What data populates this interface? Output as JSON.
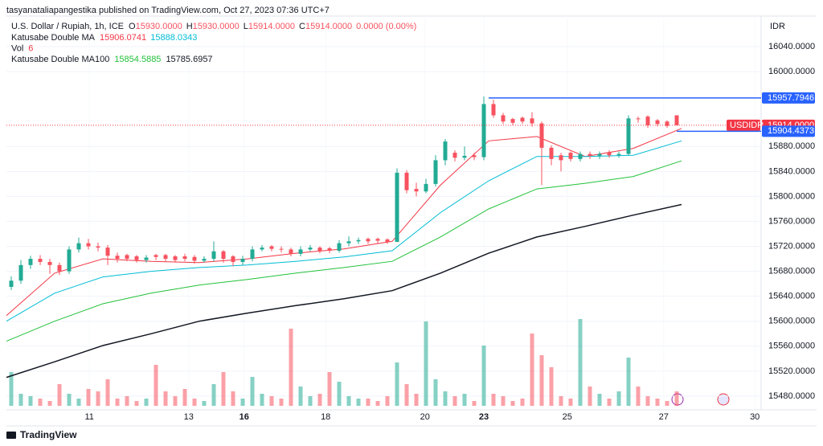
{
  "header": "tasyanataliapangestika published on TradingView.com, Oct 27, 2023 07:36 UTC+7",
  "footer": "TradingView",
  "chart_data": {
    "type": "candlestick",
    "title": "U.S. Dollar / Rupiah, 1h, ICE",
    "ohlc_legend": [
      {
        "key": "O",
        "value": "15930.0000"
      },
      {
        "key": "H",
        "value": "15930.0000"
      },
      {
        "key": "L",
        "value": "15914.0000"
      },
      {
        "key": "C",
        "value": "15914.0000"
      }
    ],
    "change": "0.0000 (0.00%)",
    "indicators": [
      {
        "name": "Katusabe Double MA",
        "values": [
          "15906.0741",
          "15888.0343"
        ],
        "colors": [
          "#f23645",
          "#00bcd4"
        ]
      },
      {
        "name": "Vol",
        "values": [
          "6"
        ],
        "colors": [
          "#f23645"
        ]
      },
      {
        "name": "Katusabe Double MA100",
        "values": [
          "15854.5885",
          "15785.6957"
        ],
        "colors": [
          "#22c13a",
          "#131722"
        ]
      }
    ],
    "currency": "IDR",
    "xlim": [
      0,
      156.5
    ],
    "xticks": [
      {
        "value": 17.2,
        "label": "11"
      },
      {
        "value": 37.8,
        "label": "13"
      },
      {
        "value": 49.3,
        "label": "16"
      },
      {
        "value": 66.2,
        "label": "18"
      },
      {
        "value": 86.8,
        "label": "20"
      },
      {
        "value": 99,
        "label": "23"
      },
      {
        "value": 116.3,
        "label": "25"
      },
      {
        "value": 136.3,
        "label": "27"
      },
      {
        "value": 155.2,
        "label": "30"
      }
    ],
    "ylim": [
      15458,
      16089
    ],
    "yticks": [
      {
        "value": 15480,
        "label": "15480.0000"
      },
      {
        "value": 15520,
        "label": "15520.0000"
      },
      {
        "value": 15560,
        "label": "15560.0000"
      },
      {
        "value": 15600,
        "label": "15600.0000"
      },
      {
        "value": 15640,
        "label": "15640.0000"
      },
      {
        "value": 15680,
        "label": "15680.0000"
      },
      {
        "value": 15720,
        "label": "15720.0000"
      },
      {
        "value": 15760,
        "label": "15760.0000"
      },
      {
        "value": 15800,
        "label": "15800.0000"
      },
      {
        "value": 15840,
        "label": "15840.0000"
      },
      {
        "value": 15880,
        "label": "15880.0000"
      },
      {
        "value": 16000,
        "label": "16000.0000"
      },
      {
        "value": 16040,
        "label": "16040.0000"
      }
    ],
    "grid": true,
    "up_color": "#22ab94",
    "down_color": "#f7525f",
    "candles": {
      "x": [
        1,
        3,
        5,
        7,
        9,
        11,
        13,
        15,
        17,
        19,
        21,
        23,
        25,
        27,
        29,
        31,
        33,
        35,
        37,
        39,
        41,
        43,
        45,
        47,
        49,
        51,
        53,
        55,
        57,
        59,
        61,
        63,
        65,
        67,
        69,
        71,
        73,
        75,
        77,
        79,
        81,
        83,
        85,
        87,
        89,
        91,
        93,
        95,
        97,
        99,
        101,
        103,
        105,
        107,
        109,
        111,
        113,
        115,
        117,
        119,
        121,
        123,
        125,
        127,
        129,
        131,
        133,
        135,
        137,
        139
      ],
      "open": [
        15655,
        15665,
        15690,
        15700,
        15695,
        15690,
        15680,
        15715,
        15725,
        15720,
        15718,
        15705,
        15706,
        15704,
        15698,
        15706,
        15706,
        15704,
        15704,
        15703,
        15697,
        15700,
        15712,
        15704,
        15695,
        15700,
        15715,
        15720,
        15716,
        15715,
        15708,
        15715,
        15718,
        15717,
        15713,
        15725,
        15728,
        15732,
        15732,
        15731,
        15727,
        15838,
        15812,
        15808,
        15820,
        15858,
        15870,
        15862,
        15866,
        15863,
        15948,
        15930,
        15924,
        15926,
        15925,
        15917,
        15878,
        15866,
        15870,
        15860,
        15868,
        15865,
        15870,
        15866,
        15868,
        15925,
        15928,
        15922,
        15920,
        15930
      ],
      "high": [
        15672,
        15698,
        15705,
        15706,
        15700,
        15694,
        15720,
        15734,
        15732,
        15726,
        15722,
        15710,
        15708,
        15706,
        15706,
        15708,
        15708,
        15706,
        15708,
        15706,
        15704,
        15728,
        15714,
        15706,
        15705,
        15720,
        15722,
        15722,
        15720,
        15718,
        15720,
        15722,
        15720,
        15719,
        15730,
        15736,
        15734,
        15734,
        15734,
        15733,
        15845,
        15842,
        15822,
        15828,
        15866,
        15892,
        15874,
        15880,
        15870,
        15960,
        15955,
        15934,
        15926,
        15928,
        15935,
        15920,
        15882,
        15870,
        15872,
        15872,
        15872,
        15872,
        15874,
        15872,
        15930,
        15928,
        15930,
        15924,
        15922,
        15930
      ],
      "low": [
        15650,
        15660,
        15684,
        15690,
        15676,
        15674,
        15676,
        15710,
        15715,
        15712,
        15690,
        15694,
        15696,
        15694,
        15694,
        15698,
        15696,
        15694,
        15696,
        15692,
        15694,
        15696,
        15694,
        15688,
        15690,
        15696,
        15712,
        15712,
        15710,
        15704,
        15704,
        15712,
        15709,
        15709,
        15710,
        15720,
        15724,
        15724,
        15725,
        15724,
        15730,
        15805,
        15800,
        15805,
        15816,
        15850,
        15856,
        15858,
        15858,
        15858,
        15926,
        15916,
        15914,
        15916,
        15912,
        15818,
        15850,
        15840,
        15856,
        15856,
        15860,
        15860,
        15862,
        15862,
        15866,
        15918,
        15910,
        15912,
        15910,
        15914
      ],
      "close": [
        15665,
        15690,
        15700,
        15695,
        15690,
        15680,
        15715,
        15725,
        15720,
        15718,
        15705,
        15700,
        15700,
        15698,
        15702,
        15703,
        15700,
        15698,
        15700,
        15697,
        15700,
        15712,
        15700,
        15695,
        15700,
        15715,
        15718,
        15716,
        15715,
        15708,
        15715,
        15718,
        15713,
        15713,
        15725,
        15728,
        15730,
        15728,
        15729,
        15727,
        15838,
        15810,
        15808,
        15820,
        15858,
        15888,
        15862,
        15865,
        15863,
        15948,
        15930,
        15920,
        15918,
        15920,
        15917,
        15878,
        15860,
        15858,
        15860,
        15868,
        15865,
        15868,
        15866,
        15868,
        15925,
        15924,
        15914,
        15916,
        15913,
        15914
      ]
    },
    "volume": {
      "vlim": [
        0,
        40
      ],
      "values": [
        14,
        5,
        4,
        3,
        2,
        9,
        5,
        3,
        7,
        6,
        11,
        3,
        4,
        2,
        3,
        17,
        6,
        4,
        7,
        3,
        2,
        9,
        14,
        6,
        3,
        12,
        5,
        4,
        3,
        32,
        8,
        4,
        5,
        14,
        10,
        4,
        3,
        3,
        2,
        4,
        18,
        9,
        5,
        35,
        11,
        6,
        4,
        5,
        2,
        25,
        5,
        4,
        2,
        3,
        30,
        21,
        16,
        4,
        3,
        36,
        8,
        5,
        3,
        6,
        20,
        8,
        4,
        3,
        2,
        6
      ]
    },
    "series": [
      {
        "color": "#f23645",
        "x": [
          0,
          10,
          20,
          30,
          40,
          50,
          60,
          70,
          80,
          90,
          100,
          110,
          120,
          130,
          140
        ],
        "values": [
          15609,
          15677,
          15700,
          15696,
          15694,
          15700,
          15709,
          15716,
          15728,
          15818,
          15889,
          15896,
          15864,
          15877,
          15909
        ]
      },
      {
        "color": "#00bcd4",
        "x": [
          0,
          10,
          20,
          30,
          40,
          50,
          60,
          70,
          80,
          90,
          100,
          110,
          120,
          130,
          140
        ],
        "values": [
          15600,
          15645,
          15671,
          15680,
          15686,
          15690,
          15696,
          15703,
          15713,
          15774,
          15825,
          15864,
          15864,
          15866,
          15889
        ]
      },
      {
        "color": "#22c13a",
        "x": [
          0,
          10,
          20,
          30,
          40,
          50,
          60,
          70,
          80,
          90,
          100,
          110,
          120,
          130,
          140
        ],
        "values": [
          15568,
          15600,
          15628,
          15645,
          15658,
          15667,
          15677,
          15686,
          15696,
          15735,
          15780,
          15812,
          15821,
          15832,
          15857
        ]
      },
      {
        "color": "#131722",
        "x": [
          0,
          10,
          20,
          30,
          40,
          50,
          60,
          70,
          80,
          90,
          100,
          110,
          120,
          130,
          140
        ],
        "values": [
          15510,
          15535,
          15561,
          15580,
          15600,
          15613,
          15625,
          15636,
          15649,
          15677,
          15709,
          15735,
          15752,
          15770,
          15787
        ]
      }
    ],
    "price_lines": [
      {
        "value": 15957.7946,
        "label": "15957.7946",
        "color": "#2962ff",
        "from": 100
      },
      {
        "value": 15914,
        "label": "15914.0000",
        "tag": "USDIDR",
        "color": "#f23645",
        "from": 0
      },
      {
        "value": 15904.4373,
        "label": "15904.4373",
        "color": "#2962ff",
        "from": 139
      }
    ]
  }
}
